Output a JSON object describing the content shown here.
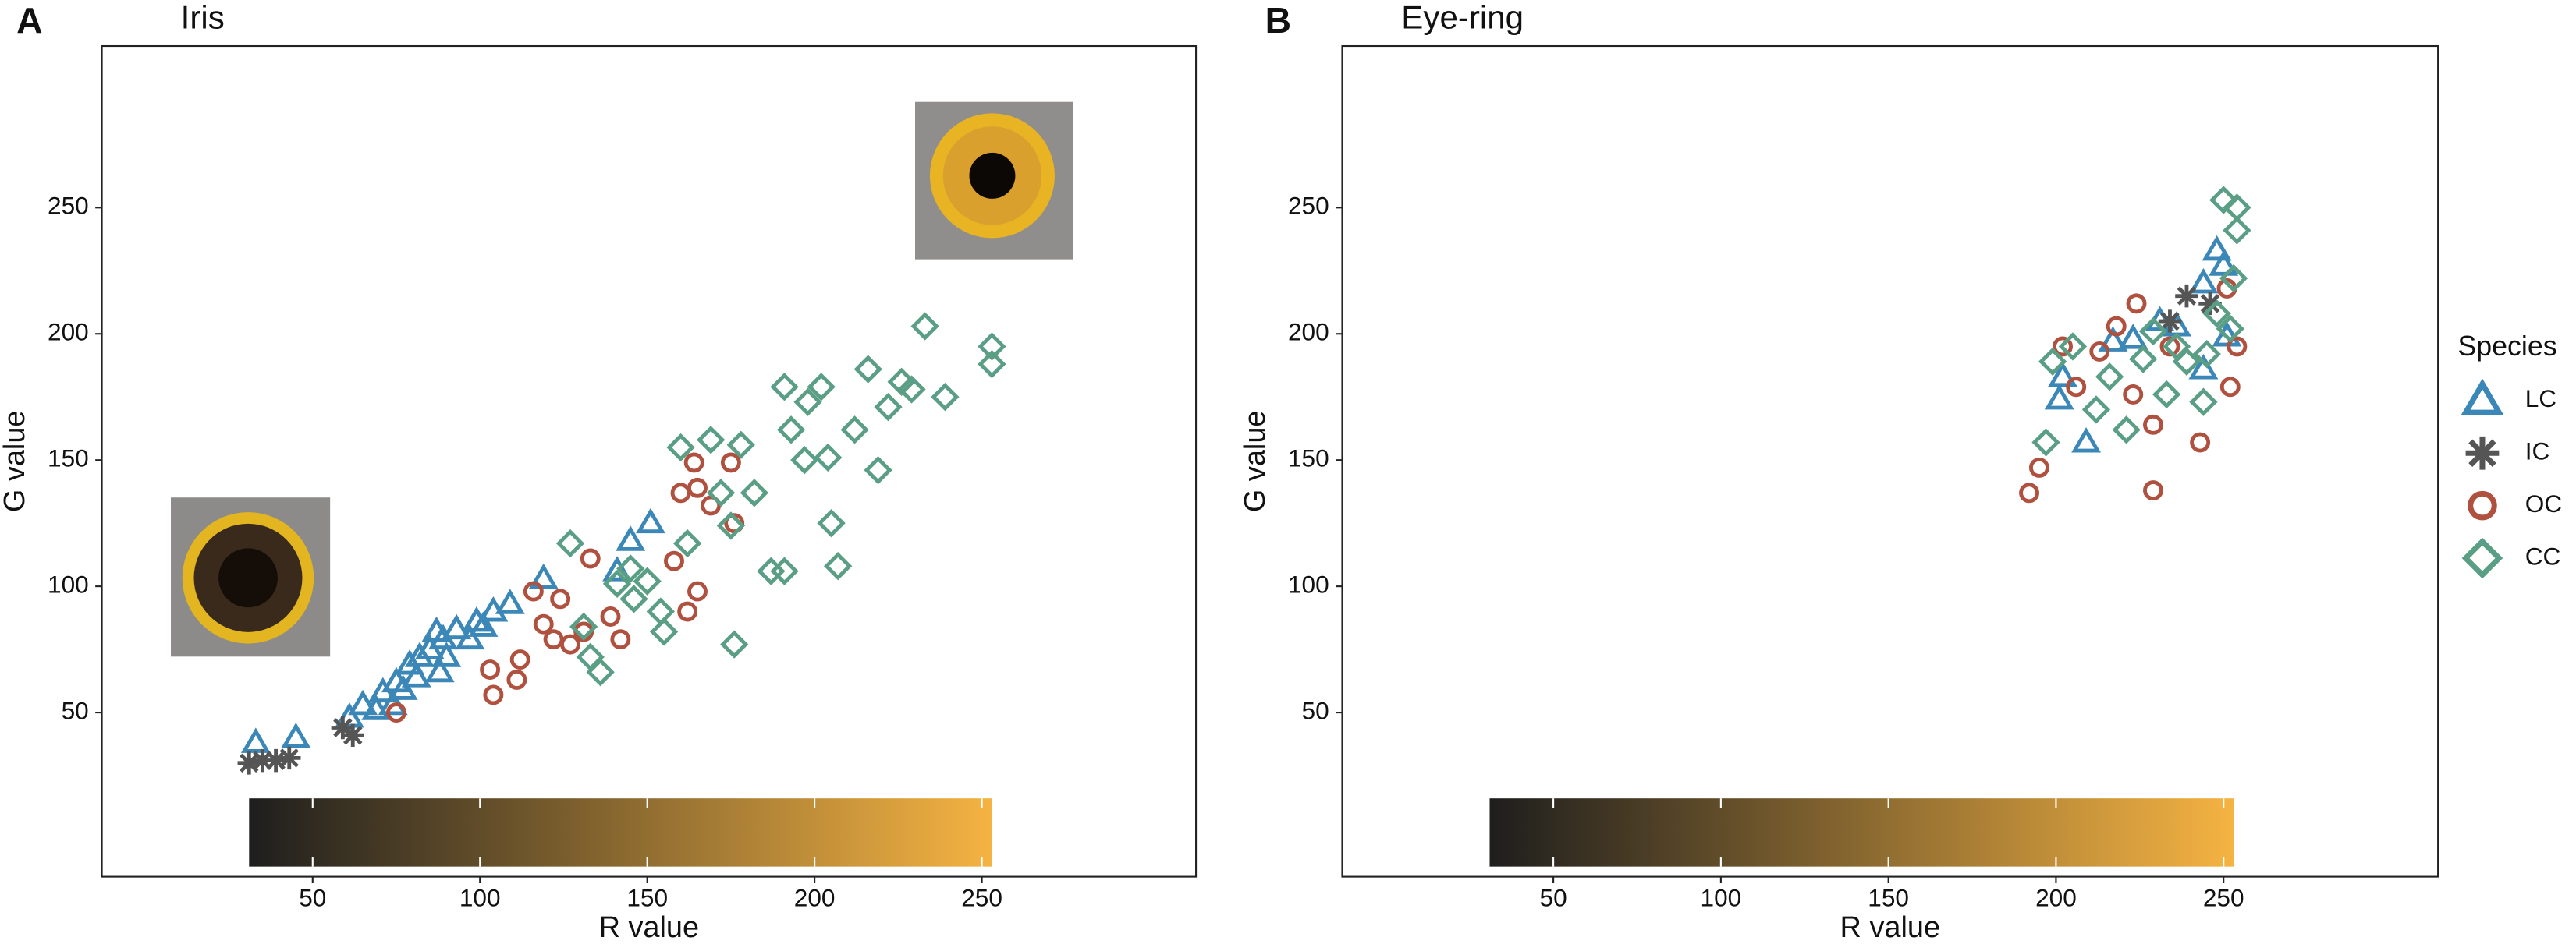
{
  "chart_data": [
    {
      "type": "scatter",
      "panel_label": "A",
      "title": "Iris",
      "x_label": "R value",
      "y_label": "G value",
      "xlim": [
        -13,
        314
      ],
      "ylim": [
        -15,
        314
      ],
      "xticks": [
        50,
        100,
        150,
        200,
        250
      ],
      "yticks": [
        50,
        100,
        150,
        200,
        250
      ],
      "colorbar": {
        "x": [
          31,
          253
        ],
        "y": [
          -11,
          16
        ],
        "colors": [
          "#1e1e1e",
          "#f5b342"
        ]
      },
      "series": [
        {
          "name": "LC",
          "color": "#3a87b8",
          "marker": "triangle",
          "x": [
            33,
            45,
            61,
            65,
            71,
            75,
            79,
            85,
            89,
            93,
            88,
            82,
            99,
            104,
            109,
            119,
            141,
            145,
            151,
            81,
            69,
            77,
            97,
            101,
            87,
            74,
            90
          ],
          "y": [
            38,
            40,
            48,
            53,
            58,
            62,
            69,
            75,
            79,
            83,
            66,
            72,
            86,
            90,
            93,
            103,
            106,
            118,
            125,
            64,
            51,
            59,
            79,
            84,
            82,
            53,
            72
          ]
        },
        {
          "name": "IC",
          "color": "#555555",
          "marker": "asterisk",
          "x": [
            31,
            35,
            39,
            43,
            59,
            62
          ],
          "y": [
            30,
            31,
            31,
            32,
            44,
            41
          ]
        },
        {
          "name": "OC",
          "color": "#b0503e",
          "marker": "circle",
          "x": [
            75,
            103,
            104,
            111,
            112,
            116,
            119,
            124,
            127,
            131,
            133,
            139,
            142,
            158,
            160,
            165,
            164,
            169,
            176,
            175,
            162,
            165,
            122
          ],
          "y": [
            50,
            67,
            57,
            63,
            71,
            98,
            85,
            95,
            77,
            82,
            111,
            88,
            79,
            110,
            137,
            98,
            149,
            132,
            125,
            149,
            90,
            139,
            79
          ]
        },
        {
          "name": "CC",
          "color": "#5a9e85",
          "marker": "diamond",
          "x": [
            127,
            131,
            133,
            136,
            141,
            145,
            154,
            155,
            160,
            162,
            169,
            172,
            175,
            176,
            178,
            182,
            187,
            191,
            191,
            193,
            197,
            198,
            202,
            204,
            205,
            207,
            212,
            216,
            219,
            222,
            226,
            229,
            233,
            239,
            253,
            253,
            146,
            150
          ],
          "y": [
            117,
            84,
            72,
            66,
            101,
            107,
            90,
            82,
            155,
            117,
            158,
            137,
            124,
            77,
            156,
            137,
            106,
            106,
            179,
            162,
            150,
            173,
            179,
            151,
            125,
            108,
            162,
            186,
            146,
            171,
            181,
            178,
            203,
            175,
            195,
            188,
            95,
            102
          ]
        }
      ]
    },
    {
      "type": "scatter",
      "panel_label": "B",
      "title": "Eye-ring",
      "x_label": "R value",
      "y_label": "G value",
      "xlim": [
        -13,
        314
      ],
      "ylim": [
        -15,
        314
      ],
      "xticks": [
        50,
        100,
        150,
        200,
        250
      ],
      "yticks": [
        50,
        100,
        150,
        200,
        250
      ],
      "colorbar": {
        "x": [
          31,
          253
        ],
        "y": [
          -11,
          16
        ],
        "colors": [
          "#1e1e1e",
          "#f5b342"
        ]
      },
      "legend_title": "Species",
      "legend": "right",
      "series": [
        {
          "name": "LC",
          "color": "#3a87b8",
          "marker": "triangle",
          "x": [
            201,
            202,
            209,
            217,
            223,
            231,
            236,
            244,
            248,
            250,
            244,
            251
          ],
          "y": [
            174,
            183,
            157,
            197,
            198,
            205,
            203,
            220,
            233,
            227,
            186,
            199
          ]
        },
        {
          "name": "IC",
          "color": "#555555",
          "marker": "asterisk",
          "x": [
            234,
            239,
            246
          ],
          "y": [
            205,
            215,
            212
          ]
        },
        {
          "name": "OC",
          "color": "#b0503e",
          "marker": "circle",
          "x": [
            192,
            195,
            202,
            206,
            213,
            218,
            223,
            229,
            229,
            234,
            243,
            252,
            251,
            254,
            224
          ],
          "y": [
            137,
            147,
            195,
            179,
            193,
            203,
            176,
            164,
            138,
            195,
            157,
            179,
            218,
            195,
            212
          ]
        },
        {
          "name": "CC",
          "color": "#5a9e85",
          "marker": "diamond",
          "x": [
            197,
            199,
            205,
            212,
            216,
            221,
            226,
            233,
            239,
            244,
            250,
            254,
            254,
            252,
            248,
            245,
            236,
            253,
            229
          ],
          "y": [
            157,
            189,
            195,
            170,
            183,
            162,
            190,
            176,
            189,
            173,
            253,
            250,
            241,
            202,
            208,
            192,
            195,
            222,
            201
          ]
        }
      ]
    }
  ]
}
